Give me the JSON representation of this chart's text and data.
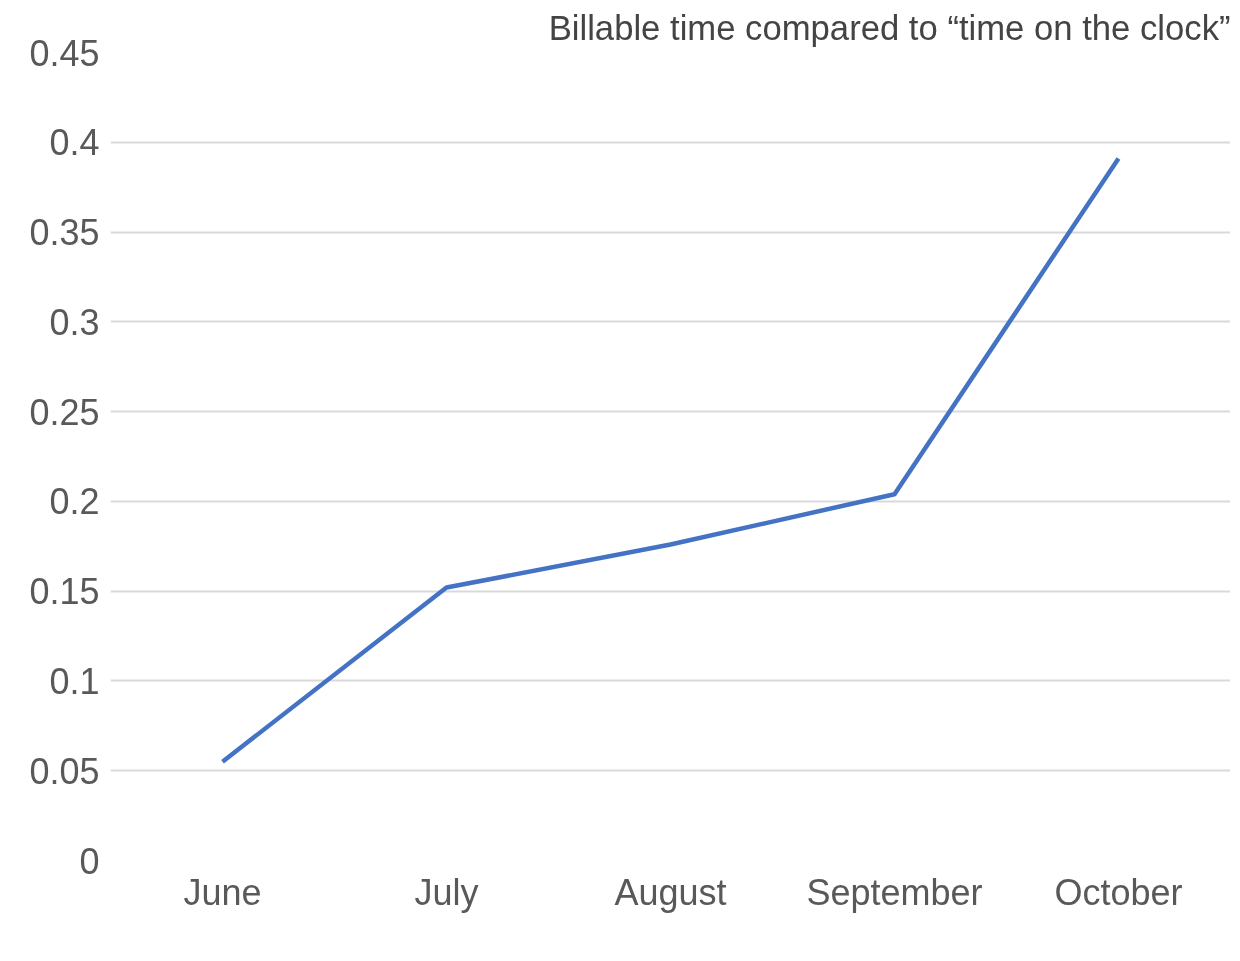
{
  "chart_data": {
    "type": "line",
    "title": "Billable time compared to “time on the clock”",
    "categories": [
      "June",
      "July",
      "August",
      "September",
      "October"
    ],
    "series": [
      {
        "color": "#4472c4",
        "values": [
          0.055,
          0.152,
          0.176,
          0.204,
          0.391
        ]
      }
    ],
    "ylim": [
      0,
      0.45
    ],
    "yticks": [
      0,
      0.05,
      0.1,
      0.15,
      0.2,
      0.25,
      0.3,
      0.35,
      0.4,
      0.45
    ],
    "grid": "y",
    "marker": "none",
    "line_style": "solid"
  }
}
